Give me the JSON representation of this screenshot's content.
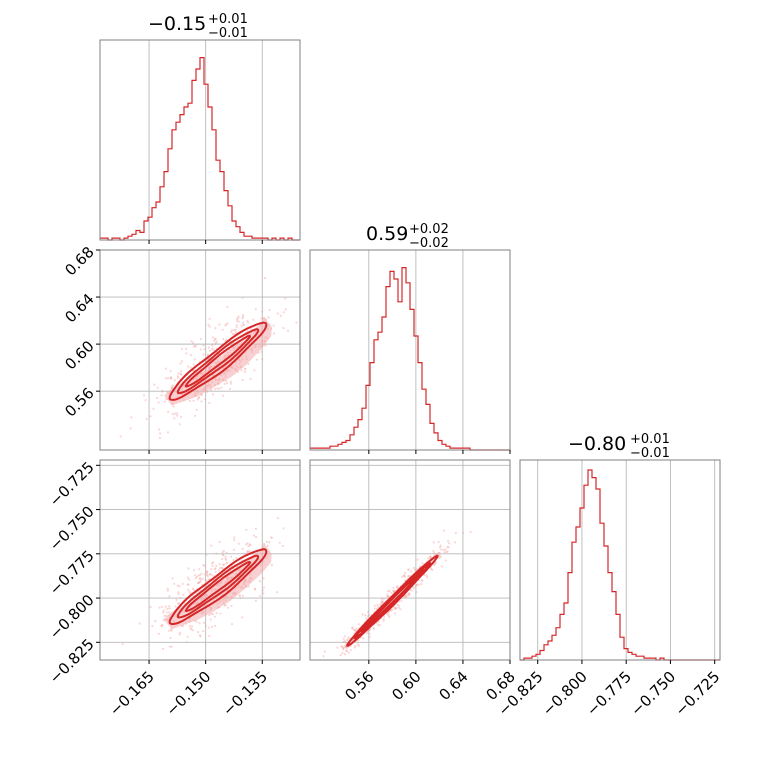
{
  "chart_data": {
    "type": "corner",
    "panels": [
      {
        "id": "hist-p1",
        "kind": "histogram",
        "title": {
          "median": "−0.15",
          "plus": "+0.01",
          "minus": "−0.01"
        },
        "xlim": [
          -0.178,
          -0.125
        ],
        "x_start": -0.178,
        "bin_width": 0.00106,
        "counts": [
          1,
          1,
          0,
          1,
          1,
          0,
          1,
          2,
          3,
          5,
          4,
          10,
          12,
          17,
          20,
          28,
          36,
          48,
          58,
          62,
          66,
          70,
          72,
          84,
          90,
          96,
          82,
          70,
          58,
          42,
          36,
          26,
          18,
          10,
          7,
          4,
          2,
          2,
          1,
          1,
          1,
          1,
          0,
          1,
          0,
          1,
          0,
          1,
          0,
          0
        ],
        "ylim": [
          0,
          100
        ]
      },
      {
        "id": "hist-p2",
        "kind": "histogram",
        "title": {
          "median": "0.59",
          "plus": "+0.02",
          "minus": "−0.02"
        },
        "xlim": [
          0.51,
          0.68
        ],
        "x_start": 0.51,
        "bin_width": 0.0034,
        "counts": [
          1,
          1,
          1,
          1,
          1,
          2,
          2,
          3,
          4,
          5,
          8,
          12,
          16,
          22,
          34,
          46,
          58,
          62,
          70,
          86,
          94,
          90,
          78,
          96,
          88,
          74,
          60,
          46,
          32,
          24,
          14,
          9,
          5,
          3,
          2,
          1,
          1,
          1,
          1,
          1,
          0,
          0,
          0,
          0,
          0,
          0,
          0,
          0,
          0,
          0
        ],
        "ylim": [
          0,
          100
        ]
      },
      {
        "id": "hist-p3",
        "kind": "histogram",
        "title": {
          "median": "−0.80",
          "plus": "+0.01",
          "minus": "−0.01"
        },
        "xlim": [
          -0.835,
          -0.722
        ],
        "x_start": -0.835,
        "bin_width": 0.00226,
        "counts": [
          0,
          1,
          1,
          2,
          3,
          5,
          8,
          10,
          13,
          17,
          24,
          30,
          46,
          62,
          70,
          80,
          92,
          100,
          96,
          90,
          72,
          60,
          46,
          36,
          24,
          12,
          6,
          4,
          3,
          2,
          2,
          1,
          1,
          1,
          0,
          1,
          0,
          0,
          0,
          0,
          0,
          0,
          0,
          0,
          0,
          0,
          0,
          0,
          0,
          0
        ],
        "ylim": [
          0,
          100
        ]
      },
      {
        "id": "scatter-p1-p2",
        "kind": "2d-density",
        "xlim": [
          -0.178,
          -0.125
        ],
        "ylim": [
          0.51,
          0.68
        ]
      },
      {
        "id": "scatter-p1-p3",
        "kind": "2d-density",
        "xlim": [
          -0.178,
          -0.125
        ],
        "ylim": [
          -0.835,
          -0.722
        ]
      },
      {
        "id": "scatter-p2-p3",
        "kind": "2d-density",
        "xlim": [
          0.51,
          0.68
        ],
        "ylim": [
          -0.835,
          -0.722
        ]
      }
    ],
    "params": [
      {
        "ticks": [
          -0.165,
          -0.15,
          -0.135
        ],
        "tick_labels": [
          "−0.165",
          "−0.150",
          "−0.135"
        ]
      },
      {
        "ticks": [
          0.56,
          0.6,
          0.64,
          0.68
        ],
        "tick_labels": [
          "0.56",
          "0.60",
          "0.64",
          "0.68"
        ]
      },
      {
        "ticks": [
          -0.825,
          -0.8,
          -0.775,
          -0.75,
          -0.725
        ],
        "tick_labels": [
          "−0.825",
          "−0.800",
          "−0.775",
          "−0.750",
          "−0.725"
        ]
      }
    ],
    "y_tick_labels": {
      "p2": [
        "0.56",
        "0.60",
        "0.64",
        "0.68"
      ],
      "p3": [
        "−0.825",
        "−0.800",
        "−0.775",
        "−0.750",
        "−0.725"
      ]
    },
    "contours": {
      "p1p2": {
        "x": [
          -0.16,
          -0.158,
          -0.154,
          -0.15,
          -0.145,
          -0.141,
          -0.137,
          -0.134,
          -0.1335
        ],
        "y": [
          0.552,
          0.556,
          0.562,
          0.57,
          0.58,
          0.59,
          0.602,
          0.612,
          0.619
        ]
      },
      "p1p3": {
        "x": [
          -0.16,
          -0.158,
          -0.154,
          -0.15,
          -0.145,
          -0.141,
          -0.137,
          -0.134,
          -0.1335
        ],
        "y": [
          -0.815,
          -0.812,
          -0.808,
          -0.803,
          -0.796,
          -0.789,
          -0.782,
          -0.776,
          -0.772
        ]
      },
      "p2p3": {
        "x": [
          0.54,
          0.55,
          0.56,
          0.57,
          0.58,
          0.59,
          0.6,
          0.61,
          0.62
        ],
        "y": [
          -0.828,
          -0.822,
          -0.815,
          -0.808,
          -0.801,
          -0.795,
          -0.788,
          -0.781,
          -0.775
        ]
      }
    },
    "colors": {
      "accent": "#d62728",
      "fill": "#f3a9ab",
      "grid": "#b8b8b8",
      "frame": "#808080"
    },
    "grid": true
  }
}
